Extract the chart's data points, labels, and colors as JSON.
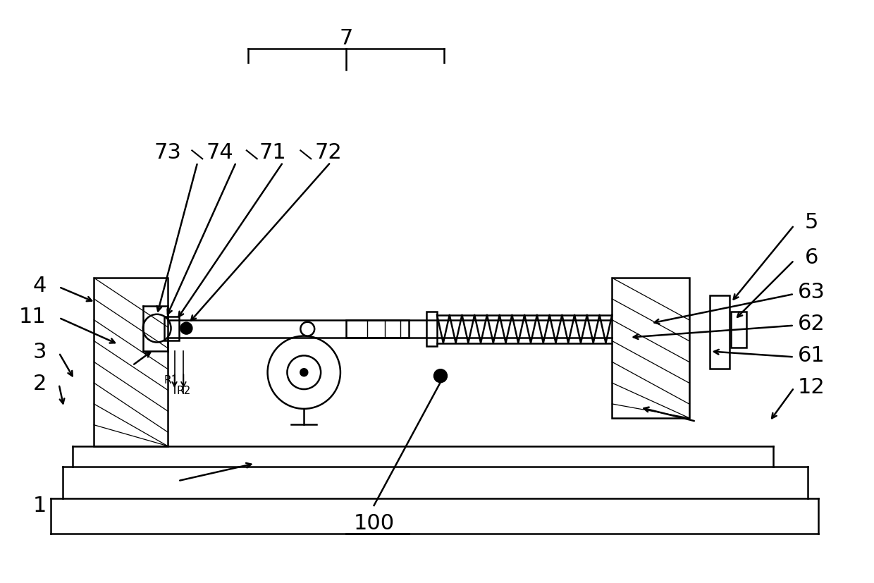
{
  "bg_color": "#ffffff",
  "line_color": "#000000",
  "lw": 1.8,
  "fig_width": 12.4,
  "fig_height": 8.28,
  "label_fontsize": 22,
  "small_label_fontsize": 11
}
